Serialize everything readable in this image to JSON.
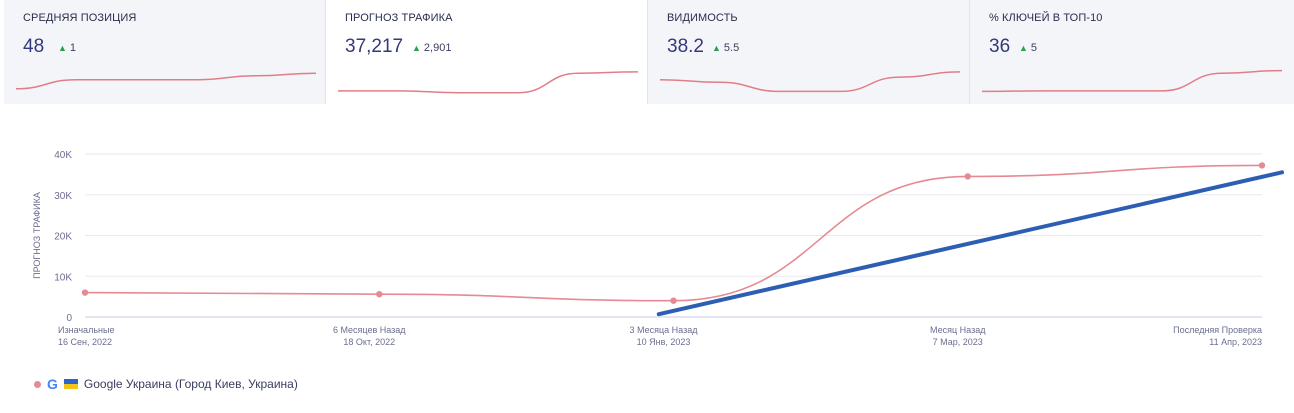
{
  "kpis": [
    {
      "title": "СРЕДНЯЯ ПОЗИЦИЯ",
      "value": "48",
      "delta": "1",
      "spark": [
        0.2,
        0.55,
        0.55,
        0.55,
        0.7,
        0.8
      ]
    },
    {
      "title": "ПРОГНОЗ ТРАФИКА",
      "value": "37,217",
      "delta": "2,901",
      "spark": [
        0.12,
        0.12,
        0.05,
        0.05,
        0.8,
        0.85
      ]
    },
    {
      "title": "ВИДИМОСТЬ",
      "value": "38.2",
      "delta": "5.5",
      "spark": [
        0.55,
        0.45,
        0.1,
        0.1,
        0.65,
        0.85
      ]
    },
    {
      "title": "% КЛЮЧЕЙ В ТОП-10",
      "value": "36",
      "delta": "5",
      "spark": [
        0.1,
        0.12,
        0.12,
        0.12,
        0.8,
        0.9
      ]
    }
  ],
  "chart_data": {
    "type": "line",
    "ylabel": "ПРОГНОЗ ТРАФИКА",
    "ylim": [
      0,
      40000
    ],
    "yticks": [
      "0",
      "10K",
      "20K",
      "30K",
      "40K"
    ],
    "categories": [
      {
        "label": "Изначальные",
        "date": "16 Сен, 2022"
      },
      {
        "label": "6 Месяцев Назад",
        "date": "18 Окт, 2022"
      },
      {
        "label": "3 Месяца Назад",
        "date": "10 Янв, 2023"
      },
      {
        "label": "Месяц Назад",
        "date": "7 Мар, 2023"
      },
      {
        "label": "Последняя Проверка",
        "date": "11 Апр, 2023"
      }
    ],
    "series": [
      {
        "name": "Google Украина (Город Киев, Украина)",
        "color": "#e58a92",
        "values": [
          6000,
          5600,
          4000,
          34500,
          37200
        ]
      }
    ],
    "trend": {
      "color": "#2c5fb3",
      "from_value": 700,
      "to_value": 35500
    },
    "grid": true
  },
  "legend": {
    "label": "Google Украина (Город Киев, Украина)",
    "engine_letter": "G"
  }
}
